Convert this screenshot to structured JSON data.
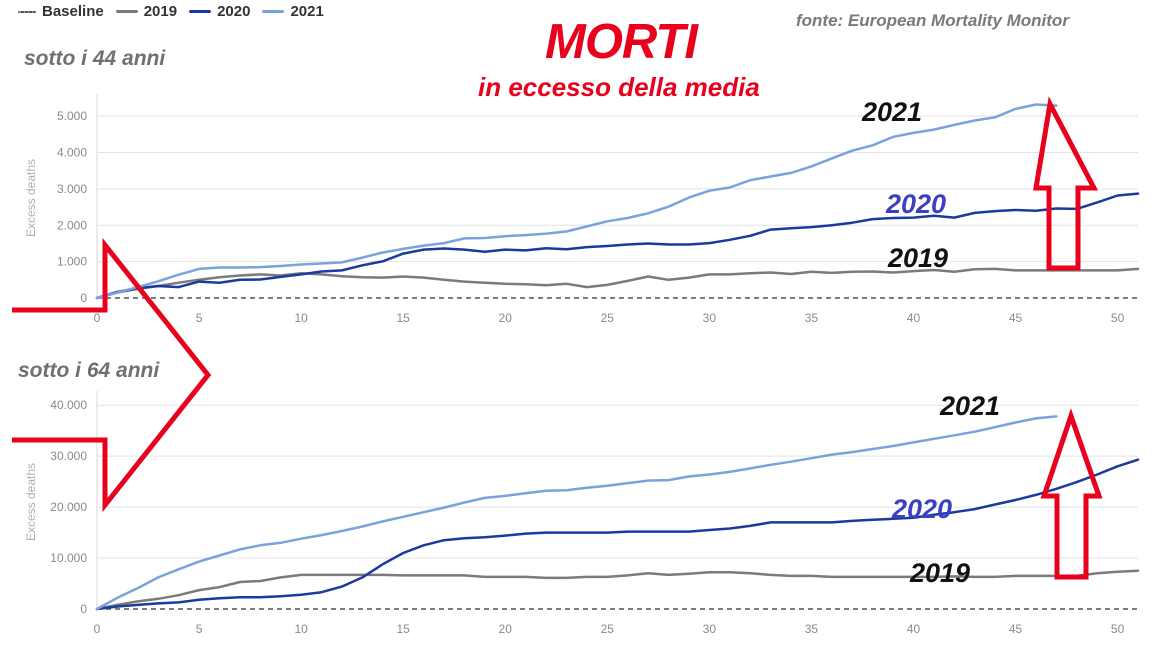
{
  "legend": {
    "items": [
      {
        "label": "Baseline",
        "color": "#555555",
        "style": "dotted"
      },
      {
        "label": "2019",
        "color": "#7b7b7b",
        "style": "solid"
      },
      {
        "label": "2020",
        "color": "#1b3a9c",
        "style": "solid"
      },
      {
        "label": "2021",
        "color": "#7aa3db",
        "style": "solid"
      }
    ]
  },
  "source": "fonte: European Mortality Monitor",
  "title": "MORTI",
  "subtitle": "in eccesso della media",
  "colors": {
    "accent": "#e8001c",
    "series_2019": "#7b7b7b",
    "series_2020": "#1b3a9c",
    "series_2021": "#7aa3db",
    "label_2020": "#3a3fc4"
  },
  "panels": [
    {
      "title": "sotto i 44 anni",
      "year_labels": [
        "2021",
        "2020",
        "2019"
      ]
    },
    {
      "title": "sotto i 64 anni",
      "year_labels": [
        "2021",
        "2020",
        "2019"
      ]
    }
  ],
  "chart_data": [
    {
      "type": "line",
      "title": "sotto i 44 anni",
      "ylabel": "Excess deaths",
      "xlim": [
        0,
        51
      ],
      "ylim": [
        0,
        5500
      ],
      "xticks": [
        0,
        5,
        10,
        15,
        20,
        25,
        30,
        35,
        40,
        45,
        50
      ],
      "yticks": [
        0,
        1000,
        2000,
        3000,
        4000,
        5000
      ],
      "ytick_labels": [
        "0",
        "1.000",
        "2.000",
        "3.000",
        "4.000",
        "5.000"
      ],
      "grid": true,
      "legend": "top-left",
      "series": [
        {
          "name": "Baseline",
          "x": [
            0,
            51
          ],
          "y": [
            0,
            0
          ]
        },
        {
          "name": "2019",
          "x": [
            0,
            1,
            2,
            3,
            4,
            5,
            6,
            7,
            8,
            9,
            10,
            11,
            12,
            13,
            14,
            15,
            16,
            17,
            18,
            19,
            20,
            21,
            22,
            23,
            24,
            25,
            26,
            27,
            28,
            29,
            30,
            31,
            32,
            33,
            34,
            35,
            36,
            37,
            38,
            39,
            40,
            41,
            42,
            43,
            44,
            45,
            46,
            47,
            48,
            49,
            50,
            51
          ],
          "y": [
            0,
            150,
            250,
            330,
            420,
            500,
            570,
            620,
            650,
            620,
            680,
            650,
            600,
            570,
            560,
            590,
            560,
            500,
            450,
            420,
            390,
            380,
            350,
            390,
            300,
            360,
            470,
            590,
            500,
            560,
            650,
            650,
            680,
            700,
            660,
            720,
            690,
            720,
            730,
            700,
            740,
            770,
            720,
            790,
            800,
            760,
            760,
            760,
            760,
            760,
            760,
            800
          ]
        },
        {
          "name": "2020",
          "x": [
            0,
            1,
            2,
            3,
            4,
            5,
            6,
            7,
            8,
            9,
            10,
            11,
            12,
            13,
            14,
            15,
            16,
            17,
            18,
            19,
            20,
            21,
            22,
            23,
            24,
            25,
            26,
            27,
            28,
            29,
            30,
            31,
            32,
            33,
            34,
            35,
            36,
            37,
            38,
            39,
            40,
            41,
            42,
            43,
            44,
            45,
            46,
            47,
            48,
            49,
            50,
            51
          ],
          "y": [
            0,
            170,
            270,
            330,
            300,
            450,
            420,
            500,
            510,
            580,
            650,
            730,
            760,
            900,
            1010,
            1220,
            1330,
            1360,
            1330,
            1270,
            1330,
            1310,
            1370,
            1340,
            1400,
            1430,
            1470,
            1500,
            1470,
            1470,
            1510,
            1600,
            1710,
            1880,
            1920,
            1950,
            2000,
            2070,
            2170,
            2200,
            2210,
            2260,
            2210,
            2340,
            2390,
            2420,
            2400,
            2460,
            2450,
            2630,
            2820,
            2870
          ]
        },
        {
          "name": "2021",
          "x": [
            0,
            1,
            2,
            3,
            4,
            5,
            6,
            7,
            8,
            9,
            10,
            11,
            12,
            13,
            14,
            15,
            16,
            17,
            18,
            19,
            20,
            21,
            22,
            23,
            24,
            25,
            26,
            27,
            28,
            29,
            30,
            31,
            32,
            33,
            34,
            35,
            36,
            37,
            38,
            39,
            40,
            41,
            42,
            43,
            44,
            45,
            46,
            47
          ],
          "y": [
            0,
            150,
            300,
            460,
            640,
            800,
            840,
            840,
            850,
            880,
            920,
            950,
            980,
            1110,
            1250,
            1350,
            1440,
            1510,
            1640,
            1650,
            1700,
            1730,
            1770,
            1830,
            1970,
            2110,
            2200,
            2330,
            2510,
            2760,
            2950,
            3040,
            3240,
            3340,
            3440,
            3620,
            3840,
            4050,
            4200,
            4430,
            4540,
            4630,
            4760,
            4880,
            4970,
            5200,
            5320,
            5290
          ]
        }
      ]
    },
    {
      "type": "line",
      "title": "sotto i 64 anni",
      "ylabel": "Excess deaths",
      "xlim": [
        0,
        51
      ],
      "ylim": [
        0,
        42000
      ],
      "xticks": [
        0,
        5,
        10,
        15,
        20,
        25,
        30,
        35,
        40,
        45,
        50
      ],
      "yticks": [
        0,
        10000,
        20000,
        30000,
        40000
      ],
      "ytick_labels": [
        "0",
        "10.000",
        "20.000",
        "30.000",
        "40.000"
      ],
      "grid": true,
      "series": [
        {
          "name": "Baseline",
          "x": [
            0,
            51
          ],
          "y": [
            0,
            0
          ]
        },
        {
          "name": "2019",
          "x": [
            0,
            1,
            2,
            3,
            4,
            5,
            6,
            7,
            8,
            9,
            10,
            11,
            12,
            13,
            14,
            15,
            16,
            17,
            18,
            19,
            20,
            21,
            22,
            23,
            24,
            25,
            26,
            27,
            28,
            29,
            30,
            31,
            32,
            33,
            34,
            35,
            36,
            37,
            38,
            39,
            40,
            41,
            42,
            43,
            44,
            45,
            46,
            47,
            48,
            49,
            50,
            51
          ],
          "y": [
            0,
            800,
            1500,
            2000,
            2700,
            3700,
            4300,
            5300,
            5500,
            6200,
            6700,
            6700,
            6700,
            6700,
            6700,
            6600,
            6600,
            6600,
            6600,
            6300,
            6300,
            6300,
            6100,
            6100,
            6300,
            6300,
            6600,
            7000,
            6700,
            6900,
            7200,
            7200,
            7000,
            6700,
            6500,
            6500,
            6300,
            6300,
            6300,
            6300,
            6300,
            6300,
            6400,
            6300,
            6300,
            6500,
            6500,
            6500,
            6500,
            7000,
            7300,
            7500
          ]
        },
        {
          "name": "2020",
          "x": [
            0,
            1,
            2,
            3,
            4,
            5,
            6,
            7,
            8,
            9,
            10,
            11,
            12,
            13,
            14,
            15,
            16,
            17,
            18,
            19,
            20,
            21,
            22,
            23,
            24,
            25,
            26,
            27,
            28,
            29,
            30,
            31,
            32,
            33,
            34,
            35,
            36,
            37,
            38,
            39,
            40,
            41,
            42,
            43,
            44,
            45,
            46,
            47,
            48,
            49,
            50,
            51
          ],
          "y": [
            0,
            500,
            800,
            1100,
            1300,
            1800,
            2100,
            2300,
            2300,
            2500,
            2800,
            3300,
            4400,
            6200,
            8800,
            11000,
            12500,
            13500,
            13900,
            14100,
            14400,
            14800,
            15000,
            15000,
            15000,
            15000,
            15200,
            15200,
            15200,
            15200,
            15500,
            15800,
            16300,
            17000,
            17000,
            17000,
            17000,
            17300,
            17500,
            17700,
            17900,
            18500,
            19000,
            19600,
            20500,
            21400,
            22400,
            23600,
            24900,
            26400,
            28000,
            29300
          ]
        },
        {
          "name": "2021",
          "x": [
            0,
            1,
            2,
            3,
            4,
            5,
            6,
            7,
            8,
            9,
            10,
            11,
            12,
            13,
            14,
            15,
            16,
            17,
            18,
            19,
            20,
            21,
            22,
            23,
            24,
            25,
            26,
            27,
            28,
            29,
            30,
            31,
            32,
            33,
            34,
            35,
            36,
            37,
            38,
            39,
            40,
            41,
            42,
            43,
            44,
            45,
            46,
            47
          ],
          "y": [
            0,
            2200,
            4100,
            6200,
            7800,
            9300,
            10500,
            11700,
            12500,
            13000,
            13800,
            14500,
            15300,
            16200,
            17200,
            18100,
            19000,
            19900,
            20900,
            21800,
            22200,
            22700,
            23200,
            23300,
            23800,
            24200,
            24700,
            25200,
            25300,
            26000,
            26400,
            26900,
            27600,
            28300,
            28900,
            29600,
            30300,
            30800,
            31400,
            32000,
            32700,
            33400,
            34100,
            34800,
            35700,
            36600,
            37400,
            37800
          ]
        }
      ]
    }
  ]
}
